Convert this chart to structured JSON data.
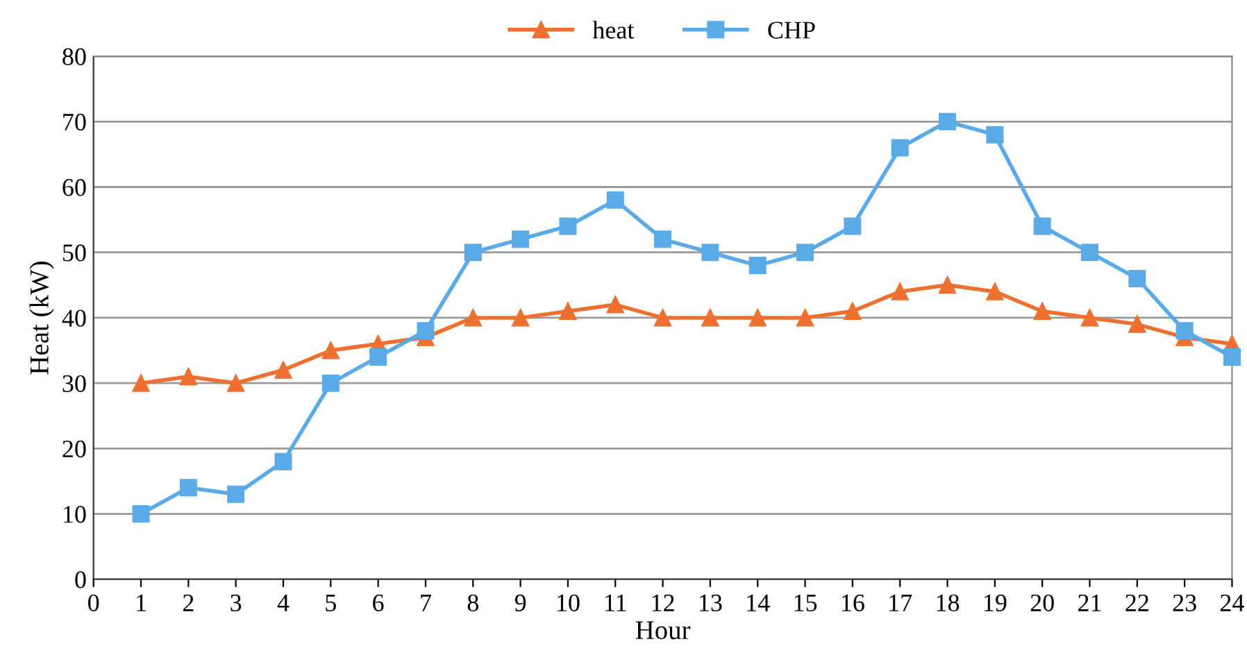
{
  "chart_data": {
    "type": "line",
    "xlabel": "Hour",
    "ylabel": "Heat (kW)",
    "x": [
      1,
      2,
      3,
      4,
      5,
      6,
      7,
      8,
      9,
      10,
      11,
      12,
      13,
      14,
      15,
      16,
      17,
      18,
      19,
      20,
      21,
      22,
      23,
      24
    ],
    "series": [
      {
        "name": "heat",
        "color": "#ee7030",
        "marker": "triangle",
        "values": [
          30,
          31,
          30,
          32,
          35,
          36,
          37,
          40,
          40,
          41,
          42,
          40,
          40,
          40,
          40,
          41,
          44,
          45,
          44,
          41,
          40,
          39,
          37,
          36
        ]
      },
      {
        "name": "CHP",
        "color": "#5aaae8",
        "marker": "square",
        "values": [
          10,
          14,
          13,
          18,
          30,
          34,
          38,
          50,
          52,
          54,
          58,
          52,
          50,
          48,
          50,
          54,
          66,
          70,
          68,
          54,
          50,
          46,
          38,
          34
        ]
      }
    ],
    "xlim": [
      0,
      24
    ],
    "xticks": [
      0,
      1,
      2,
      3,
      4,
      5,
      6,
      7,
      8,
      9,
      10,
      11,
      12,
      13,
      14,
      15,
      16,
      17,
      18,
      19,
      20,
      21,
      22,
      23,
      24
    ],
    "ylim": [
      0,
      80
    ],
    "yticks": [
      0,
      10,
      20,
      30,
      40,
      50,
      60,
      70,
      80
    ],
    "grid": "y",
    "legend": "top",
    "line_style": "solid"
  }
}
